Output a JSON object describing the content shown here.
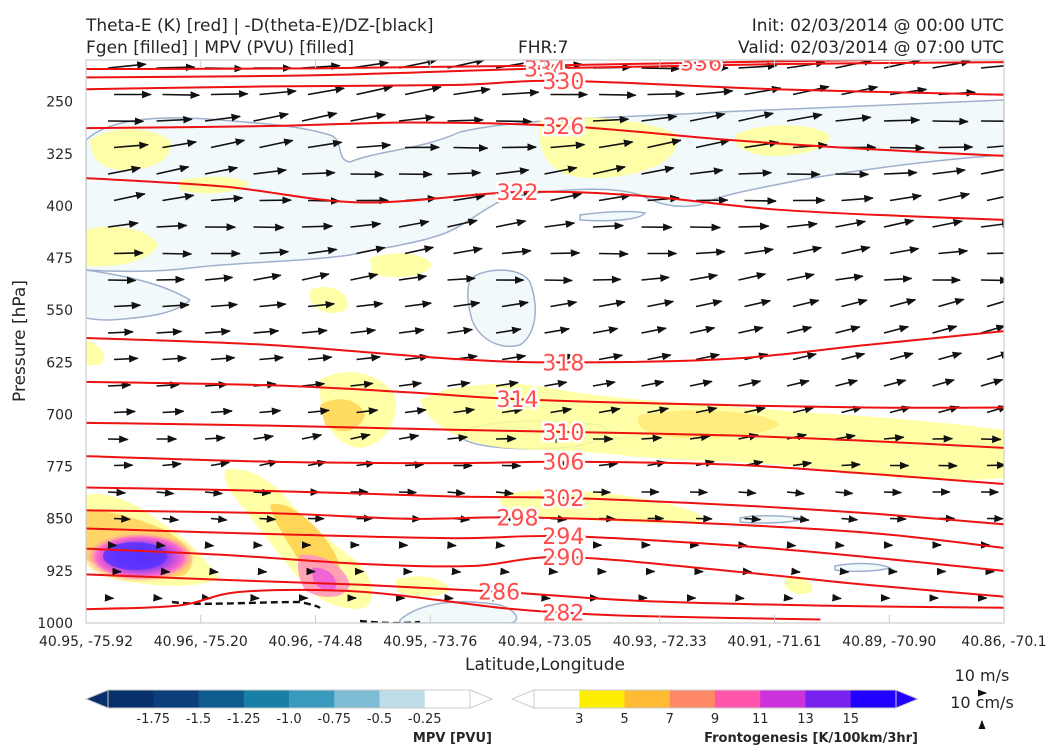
{
  "header": {
    "title_left_1": "Theta-E (K) [red] | -D(theta-E)/DZ-[black]",
    "title_left_2": "Fgen [filled] | MPV (PVU) [filled]",
    "fhr": "FHR:7",
    "init": "Init: 02/03/2014 @ 00:00 UTC",
    "valid": "Valid: 02/03/2014 @ 07:00 UTC"
  },
  "chart_data": {
    "type": "cross-section",
    "xlabel": "Latitude,Longitude",
    "ylabel": "Pressure [hPa]",
    "x_ticks": [
      "40.95, -75.92",
      "40.96, -75.20",
      "40.96, -74.48",
      "40.95, -73.76",
      "40.94, -73.05",
      "40.93, -72.33",
      "40.91, -71.61",
      "40.89, -70.90",
      "40.86, -70.1"
    ],
    "y_ticks": [
      250,
      325,
      400,
      475,
      550,
      625,
      700,
      775,
      850,
      925,
      1000
    ],
    "ylim": [
      1000,
      190
    ],
    "theta_e_contours": [
      {
        "label": "336",
        "lx": 0.67,
        "points": [
          [
            0.0,
            203
          ],
          [
            0.25,
            202
          ],
          [
            0.5,
            198
          ],
          [
            0.75,
            192
          ],
          [
            1.0,
            188
          ]
        ]
      },
      {
        "label": "334",
        "lx": 0.5,
        "points": [
          [
            0.0,
            215
          ],
          [
            0.25,
            212
          ],
          [
            0.5,
            202
          ],
          [
            0.75,
            196
          ],
          [
            1.0,
            193
          ]
        ]
      },
      {
        "label": "330",
        "lx": 0.52,
        "points": [
          [
            0.0,
            232
          ],
          [
            0.2,
            228
          ],
          [
            0.4,
            226
          ],
          [
            0.52,
            220
          ],
          [
            0.75,
            232
          ],
          [
            1.0,
            240
          ]
        ]
      },
      {
        "label": "326",
        "lx": 0.52,
        "points": [
          [
            0.0,
            288
          ],
          [
            0.2,
            285
          ],
          [
            0.35,
            280
          ],
          [
            0.52,
            285
          ],
          [
            0.7,
            305
          ],
          [
            0.85,
            318
          ],
          [
            1.0,
            328
          ]
        ]
      },
      {
        "label": "322",
        "lx": 0.47,
        "points": [
          [
            0.0,
            360
          ],
          [
            0.15,
            372
          ],
          [
            0.3,
            395
          ],
          [
            0.47,
            380
          ],
          [
            0.6,
            385
          ],
          [
            0.75,
            405
          ],
          [
            0.9,
            415
          ],
          [
            1.0,
            420
          ]
        ]
      },
      {
        "label": "318",
        "lx": 0.52,
        "points": [
          [
            0.0,
            590
          ],
          [
            0.2,
            600
          ],
          [
            0.4,
            620
          ],
          [
            0.52,
            625
          ],
          [
            0.7,
            620
          ],
          [
            0.85,
            600
          ],
          [
            1.0,
            580
          ]
        ]
      },
      {
        "label": "314",
        "lx": 0.47,
        "points": [
          [
            0.0,
            653
          ],
          [
            0.2,
            658
          ],
          [
            0.35,
            668
          ],
          [
            0.47,
            678
          ],
          [
            0.65,
            685
          ],
          [
            0.85,
            690
          ],
          [
            1.0,
            690
          ]
        ]
      },
      {
        "label": "310",
        "lx": 0.52,
        "points": [
          [
            0.0,
            712
          ],
          [
            0.2,
            716
          ],
          [
            0.4,
            722
          ],
          [
            0.52,
            725
          ],
          [
            0.7,
            730
          ],
          [
            0.85,
            738
          ],
          [
            1.0,
            748
          ]
        ]
      },
      {
        "label": "306",
        "lx": 0.52,
        "points": [
          [
            0.0,
            760
          ],
          [
            0.2,
            768
          ],
          [
            0.4,
            770
          ],
          [
            0.52,
            768
          ],
          [
            0.7,
            772
          ],
          [
            0.85,
            785
          ],
          [
            1.0,
            800
          ]
        ]
      },
      {
        "label": "302",
        "lx": 0.52,
        "points": [
          [
            0.0,
            805
          ],
          [
            0.2,
            810
          ],
          [
            0.4,
            818
          ],
          [
            0.52,
            820
          ],
          [
            0.7,
            830
          ],
          [
            0.85,
            842
          ],
          [
            1.0,
            858
          ]
        ]
      },
      {
        "label": "298",
        "lx": 0.47,
        "points": [
          [
            0.0,
            838
          ],
          [
            0.2,
            842
          ],
          [
            0.35,
            850
          ],
          [
            0.47,
            848
          ],
          [
            0.65,
            855
          ],
          [
            0.85,
            870
          ],
          [
            1.0,
            892
          ]
        ]
      },
      {
        "label": "294",
        "lx": 0.52,
        "points": [
          [
            0.0,
            864
          ],
          [
            0.2,
            872
          ],
          [
            0.4,
            878
          ],
          [
            0.52,
            875
          ],
          [
            0.7,
            888
          ],
          [
            0.85,
            905
          ],
          [
            1.0,
            925
          ]
        ]
      },
      {
        "label": "290",
        "lx": 0.52,
        "points": [
          [
            0.0,
            893
          ],
          [
            0.15,
            902
          ],
          [
            0.3,
            915
          ],
          [
            0.42,
            918
          ],
          [
            0.52,
            905
          ],
          [
            0.7,
            925
          ],
          [
            0.85,
            945
          ],
          [
            1.0,
            962
          ]
        ]
      },
      {
        "label": "286",
        "lx": 0.45,
        "points": [
          [
            0.0,
            930
          ],
          [
            0.15,
            938
          ],
          [
            0.3,
            945
          ],
          [
            0.45,
            955
          ],
          [
            0.6,
            968
          ],
          [
            0.8,
            975
          ],
          [
            1.0,
            978
          ]
        ]
      },
      {
        "label": "282",
        "lx": 0.52,
        "points": [
          [
            0.0,
            980
          ],
          [
            0.1,
            975
          ],
          [
            0.17,
            955
          ],
          [
            0.3,
            955
          ],
          [
            0.45,
            978
          ],
          [
            0.52,
            985
          ],
          [
            0.6,
            990
          ],
          [
            0.8,
            995
          ]
        ]
      }
    ],
    "mpv_colorbar": {
      "title": "MPV [PVU]",
      "ticks": [
        "-1.75",
        "-1.5",
        "-1.25",
        "-1.0",
        "-0.75",
        "-0.5",
        "-0.25"
      ],
      "colors": [
        "#08306b",
        "#0b3e7a",
        "#0f5a8f",
        "#1a7fa6",
        "#3b9bbf",
        "#7ebcd4",
        "#bfdde8",
        "#ffffff"
      ]
    },
    "fgen_colorbar": {
      "title": "Frontogenesis [K/100km/3hr]",
      "ticks": [
        "3",
        "5",
        "7",
        "9",
        "11",
        "13",
        "15"
      ],
      "colors": [
        "#ffffff",
        "#ffee00",
        "#ffbb33",
        "#ff8866",
        "#ff55aa",
        "#cc33dd",
        "#7722ee",
        "#2200ff"
      ]
    },
    "wind_scale": {
      "u": "10 m/s",
      "w": "10 cm/s"
    }
  }
}
